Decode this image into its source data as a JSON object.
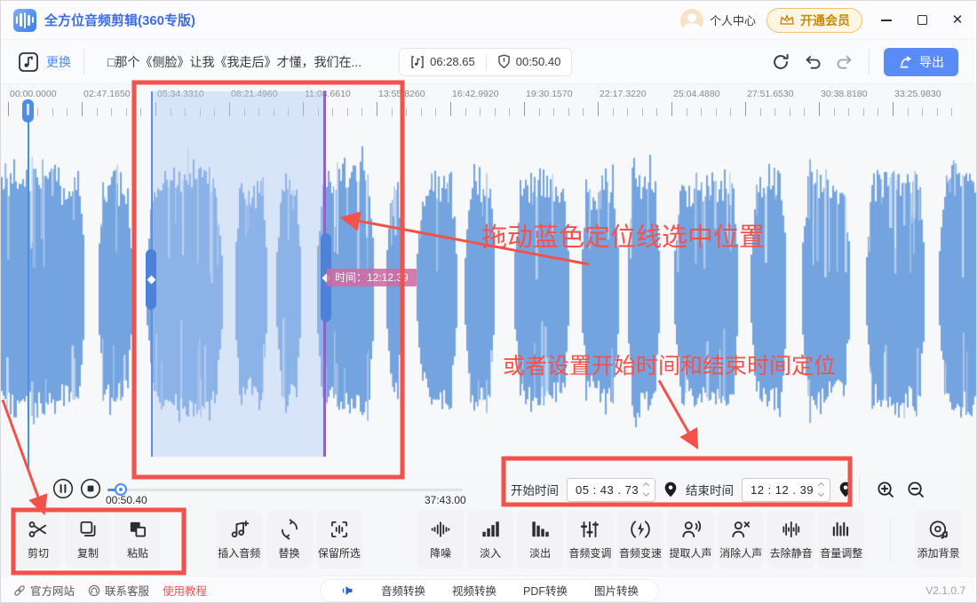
{
  "titlebar": {
    "app_title": "全方位音频剪辑(360专版)",
    "user_center": "个人中心",
    "vip_label": "开通会员",
    "close_glyph": "✕"
  },
  "toolbar": {
    "replace_label": "更换",
    "track_title": "□那个《侧脸》让我《我走后》才懂，我们在...",
    "duration": "06:28.65",
    "position": "00:50.40",
    "export_label": "导出"
  },
  "timeline": {
    "ticks": [
      "00:00.0000",
      "02:47.1650",
      "05:34.3310",
      "08:21.4960",
      "11:08.6610",
      "13:55.8260",
      "16:42.9920",
      "19:30.1570",
      "22:17.3220",
      "25:04.4880",
      "27:51.6530",
      "30:38.8180",
      "33:25.9830"
    ]
  },
  "selection": {
    "tooltip": "时间：12:12.39"
  },
  "annotations": {
    "drag_hint": "拖动蓝色定位线选中位置",
    "time_hint": "或者设置开始时间和结束时间定位"
  },
  "playback": {
    "current_time": "00:50.40",
    "total_time": "37:43.00"
  },
  "time_range": {
    "start_label": "开始时间",
    "start_value": "05 : 43 . 73",
    "end_label": "结束时间",
    "end_value": "12 : 12 . 39"
  },
  "tools": [
    {
      "id": "cut",
      "label": "剪切"
    },
    {
      "id": "copy",
      "label": "复制"
    },
    {
      "id": "paste",
      "label": "粘贴"
    },
    {
      "id": "insert-audio",
      "label": "插入音频"
    },
    {
      "id": "replace",
      "label": "替换"
    },
    {
      "id": "keep-selection",
      "label": "保留所选"
    },
    {
      "id": "denoise",
      "label": "降噪"
    },
    {
      "id": "fade-in",
      "label": "淡入"
    },
    {
      "id": "fade-out",
      "label": "淡出"
    },
    {
      "id": "pitch",
      "label": "音频变调"
    },
    {
      "id": "speed",
      "label": "音频变速"
    },
    {
      "id": "extract-vocal",
      "label": "提取人声"
    },
    {
      "id": "remove-vocal",
      "label": "消除人声"
    },
    {
      "id": "remove-silence",
      "label": "去除静音"
    },
    {
      "id": "volume",
      "label": "音量调整"
    },
    {
      "id": "add-background",
      "label": "添加背景"
    }
  ],
  "footer": {
    "official_site": "官方网站",
    "contact_support": "联系客服",
    "tutorial": "使用教程",
    "converters": [
      "音频转换",
      "视频转换",
      "PDF转换",
      "图片转换"
    ],
    "version": "V2.1.0.7"
  },
  "colors": {
    "accent_blue": "#4a8bf0",
    "annotation_red": "#f5514b",
    "waveform_blue": "#74a4e0",
    "selection_blue": "#adc9f2",
    "vip_gold": "#c8870f"
  }
}
